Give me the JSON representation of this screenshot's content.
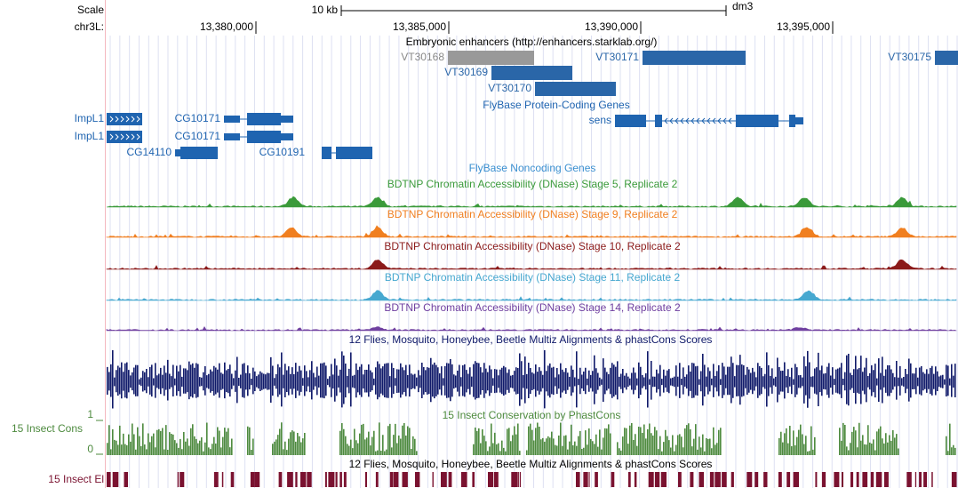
{
  "header": {
    "scale": "Scale",
    "scale_bar": "10 kb",
    "assembly": "dm3",
    "chrom": "chr3L:",
    "positions": [
      "13,380,000",
      "13,385,000",
      "13,390,000",
      "13,395,000"
    ]
  },
  "enhancers": {
    "title": "Embryonic enhancers (http://enhancers.starklab.org/)",
    "items": [
      "VT30168",
      "VT30171",
      "VT30175",
      "VT30169",
      "VT30170"
    ]
  },
  "protein_genes": {
    "title": "FlyBase Protein-Coding Genes",
    "items": [
      "sens",
      "ImpL1",
      "ImpL1",
      "CG10171",
      "CG10171",
      "CG14110",
      "CG10191"
    ]
  },
  "noncoding_genes": {
    "title": "FlyBase Noncoding Genes"
  },
  "dnase_tracks": [
    {
      "title": "BDTNP Chromatin Accessibility (DNase) Stage 5, Replicate 2",
      "color": "#3a9a3a"
    },
    {
      "title": "BDTNP Chromatin Accessibility (DNase) Stage 9, Replicate 2",
      "color": "#f07f20"
    },
    {
      "title": "BDTNP Chromatin Accessibility (DNase) Stage 10, Replicate 2",
      "color": "#8b1a1a"
    },
    {
      "title": "BDTNP Chromatin Accessibility (DNase) Stage 11, Replicate 2",
      "color": "#47a8d0"
    },
    {
      "title": "BDTNP Chromatin Accessibility (DNase) Stage 14, Replicate 2",
      "color": "#7040a0"
    }
  ],
  "multiz": {
    "title": "12 Flies, Mosquito, Honeybee, Beetle Multiz Alignments & phastCons Scores"
  },
  "phastcons": {
    "title": "15 Insect Conservation by PhastCons",
    "label": "15 Insect Cons",
    "axis_max": "1",
    "axis_min": "0"
  },
  "elements": {
    "title": "12 Flies, Mosquito, Honeybee, Beetle Multiz Alignments & phastCons Scores",
    "label": "15 Insect El"
  }
}
